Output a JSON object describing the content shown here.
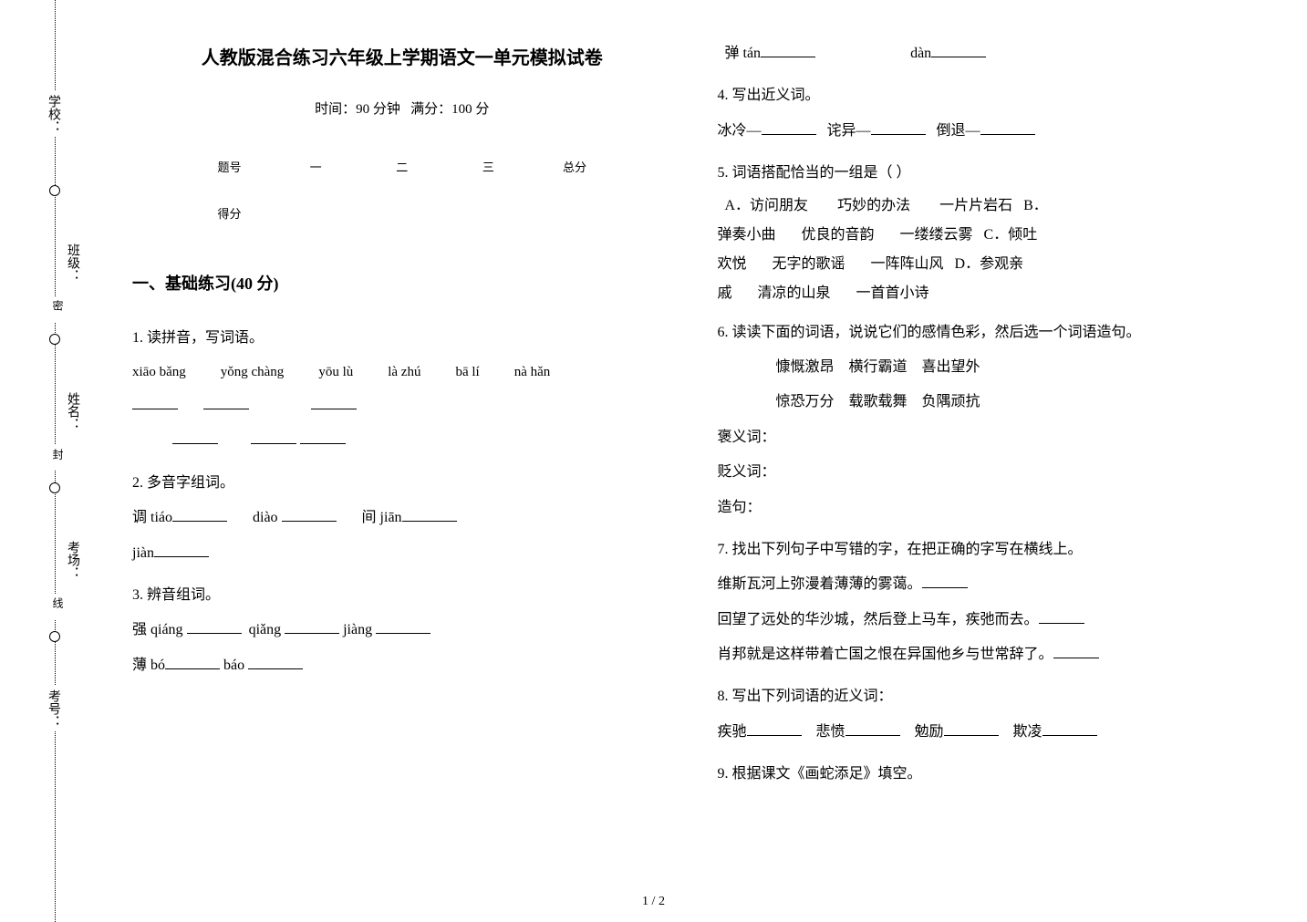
{
  "spine": {
    "labels": [
      "学校：",
      "班级：",
      "姓名：",
      "考场：",
      "考号："
    ],
    "words": [
      "密",
      "封",
      "线"
    ]
  },
  "header": {
    "title": "人教版混合练习六年级上学期语文一单元模拟试卷",
    "time_label": "时间：90 分钟",
    "score_label": "满分：100 分"
  },
  "score_table": {
    "row1": [
      "题号",
      "一",
      "二",
      "三",
      "总分"
    ],
    "row2": [
      "得分",
      "",
      "",
      "",
      ""
    ]
  },
  "section1_head": "一、基础练习(40 分)",
  "q1": {
    "stem": "1. 读拼音，写词语。",
    "pinyins": [
      "xiāo bǎng",
      "yǒng chàng",
      "yōu lù",
      "là zhú",
      "bā lí",
      "nà hǎn"
    ]
  },
  "q2": {
    "stem": "2. 多音字组词。",
    "line1_a": "调 tiáo",
    "line1_b": "diào",
    "line1_c": "间 jiān",
    "line1_d": "jiàn"
  },
  "q3": {
    "stem": "3. 辨音组词。",
    "line1": "强 qiáng",
    "line1b": "qiǎng",
    "line1c": "jiàng",
    "line2a": "薄 bó",
    "line2b": "báo",
    "line3a": "弹 tán",
    "line3b": "dàn"
  },
  "q4": {
    "stem": "4. 写出近义词。",
    "a": "冰冷—",
    "b": "诧异—",
    "c": "倒退—"
  },
  "q5": {
    "stem": "5. 词语搭配恰当的一组是（   ）",
    "optA1": "A．访问朋友",
    "optA2": "巧妙的办法",
    "optA3": "一片片岩石",
    "optB0": "B．",
    "optB1": "弹奏小曲",
    "optB2": "优良的音韵",
    "optB3": "一缕缕云雾",
    "optC0": "C．倾吐",
    "optC1": "欢悦",
    "optC2": "无字的歌谣",
    "optC3": "一阵阵山风",
    "optD0": "D．参观亲",
    "optD1": "戚",
    "optD2": "清凉的山泉",
    "optD3": "一首首小诗"
  },
  "q6": {
    "stem": "6. 读读下面的词语，说说它们的感情色彩，然后选一个词语造句。",
    "row1a": "慷慨激昂",
    "row1b": "横行霸道",
    "row1c": "喜出望外",
    "row2a": "惊恐万分",
    "row2b": "载歌载舞",
    "row2c": "负隅顽抗",
    "l1": "褒义词：",
    "l2": "贬义词：",
    "l3": "造句："
  },
  "q7": {
    "stem": "7. 找出下列句子中写错的字，在把正确的字写在横线上。",
    "s1": "维斯瓦河上弥漫着薄薄的雾蔼。",
    "s2": "回望了远处的华沙城，然后登上马车，疾弛而去。",
    "s3": "肖邦就是这样带着亡国之恨在异国他乡与世常辞了。"
  },
  "q8": {
    "stem": "8. 写出下列词语的近义词：",
    "a": "疾驰",
    "b": "悲愤",
    "c": "勉励",
    "d": "欺凌"
  },
  "q9": {
    "stem": "9. 根据课文《画蛇添足》填空。"
  },
  "pagenum": "1 / 2"
}
